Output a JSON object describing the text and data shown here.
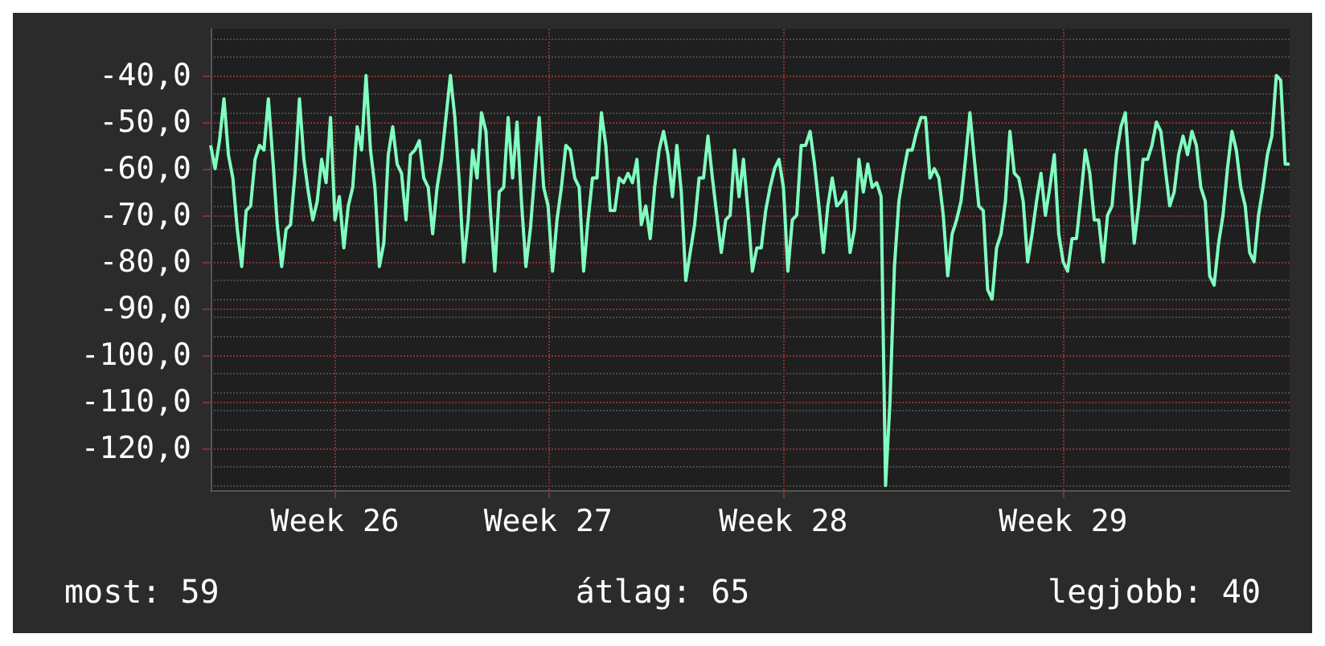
{
  "chart_data": {
    "type": "line",
    "categories": [
      null,
      null,
      null,
      null,
      null,
      null,
      null,
      null,
      null,
      null,
      null,
      null,
      null,
      null,
      null,
      null,
      null,
      null,
      null,
      null,
      null,
      null,
      null,
      null,
      null,
      null,
      null,
      null,
      "Week 26",
      null,
      null,
      null,
      null,
      null,
      null,
      null,
      null,
      null,
      null,
      null,
      null,
      null,
      null,
      null,
      null,
      null,
      null,
      null,
      null,
      null,
      null,
      null,
      null,
      null,
      null,
      null,
      null,
      null,
      null,
      null,
      null,
      null,
      null,
      null,
      null,
      null,
      null,
      null,
      null,
      null,
      null,
      null,
      null,
      null,
      null,
      null,
      "Week 27",
      null,
      null,
      null,
      null,
      null,
      null,
      null,
      null,
      null,
      null,
      null,
      null,
      null,
      null,
      null,
      null,
      null,
      null,
      null,
      null,
      null,
      null,
      null,
      null,
      null,
      null,
      null,
      null,
      null,
      null,
      null,
      null,
      null,
      null,
      null,
      null,
      null,
      null,
      null,
      null,
      null,
      null,
      null,
      null,
      null,
      null,
      null,
      null,
      null,
      null,
      null,
      null,
      "Week 28",
      null,
      null,
      null,
      null,
      null,
      null,
      null,
      null,
      null,
      null,
      null,
      null,
      null,
      null,
      null,
      null,
      null,
      null,
      null,
      null,
      null,
      null,
      null,
      null,
      null,
      null,
      null,
      null,
      null,
      null,
      null,
      null,
      null,
      null,
      null,
      null,
      null,
      null,
      null,
      null,
      null,
      null,
      null,
      null,
      null,
      null,
      null,
      null,
      null,
      null,
      null,
      null,
      null,
      null,
      null,
      null,
      null,
      null,
      null,
      null,
      null,
      null,
      "Week 29",
      null,
      null,
      null,
      null,
      null,
      null,
      null,
      null,
      null,
      null,
      null,
      null,
      null,
      null,
      null,
      null,
      null,
      null,
      null,
      null,
      null,
      null,
      null,
      null,
      null,
      null,
      null,
      null,
      null,
      null,
      null,
      null,
      null,
      null,
      null,
      null,
      null,
      null,
      null,
      null,
      null,
      null,
      null,
      null,
      null,
      null,
      null,
      null,
      null,
      null,
      null
    ],
    "series": [
      {
        "color": "#80ffc0",
        "values": [
          -55,
          -60,
          -54,
          -45,
          -57,
          -62,
          -73,
          -81,
          -69,
          -68,
          -58,
          -55,
          -56,
          -45,
          -58,
          -72,
          -81,
          -73,
          -72,
          -61,
          -45,
          -58,
          -65,
          -71,
          -67,
          -58,
          -63,
          -49,
          -71,
          -66,
          -77,
          -68,
          -64,
          -51,
          -56,
          -40,
          -56,
          -64,
          -81,
          -76,
          -57,
          -51,
          -59,
          -61,
          -71,
          -57,
          -56,
          -54,
          -62,
          -64,
          -74,
          -64,
          -58,
          -49,
          -40,
          -49,
          -63,
          -80,
          -71,
          -56,
          -62,
          -48,
          -52,
          -69,
          -82,
          -65,
          -64,
          -49,
          -62,
          -50,
          -67,
          -81,
          -73,
          -61,
          -49,
          -64,
          -68,
          -82,
          -71,
          -64,
          -55,
          -56,
          -62,
          -64,
          -82,
          -71,
          -62,
          -62,
          -48,
          -55,
          -69,
          -69,
          -62,
          -63,
          -61,
          -63,
          -58,
          -72,
          -68,
          -75,
          -64,
          -56,
          -52,
          -57,
          -66,
          -55,
          -65,
          -84,
          -78,
          -72,
          -62,
          -62,
          -53,
          -62,
          -70,
          -78,
          -71,
          -70,
          -56,
          -66,
          -58,
          -69,
          -82,
          -77,
          -77,
          -69,
          -64,
          -60,
          -58,
          -64,
          -82,
          -71,
          -70,
          -55,
          -55,
          -52,
          -59,
          -68,
          -78,
          -68,
          -62,
          -68,
          -67,
          -65,
          -78,
          -73,
          -58,
          -65,
          -59,
          -64,
          -63,
          -66,
          -128,
          -110,
          -81,
          -67,
          -61,
          -56,
          -56,
          -52,
          -49,
          -49,
          -62,
          -60,
          -62,
          -70,
          -83,
          -74,
          -71,
          -67,
          -58,
          -48,
          -58,
          -68,
          -69,
          -86,
          -88,
          -77,
          -74,
          -67,
          -52,
          -61,
          -62,
          -67,
          -80,
          -74,
          -67,
          -61,
          -70,
          -64,
          -57,
          -74,
          -80,
          -82,
          -75,
          -75,
          -66,
          -56,
          -61,
          -71,
          -71,
          -80,
          -70,
          -68,
          -57,
          -51,
          -48,
          -62,
          -76,
          -68,
          -58,
          -58,
          -55,
          -50,
          -52,
          -60,
          -68,
          -65,
          -57,
          -53,
          -57,
          -52,
          -55,
          -64,
          -67,
          -83,
          -85,
          -76,
          -70,
          -60,
          -52,
          -56,
          -64,
          -68,
          -78,
          -80,
          -70,
          -64,
          -57,
          -53,
          -40,
          -41,
          -59,
          -59
        ]
      }
    ],
    "ylim": [
      -129,
      -30
    ],
    "yticks": [
      {
        "value": -40,
        "label": "-40,0"
      },
      {
        "value": -50,
        "label": "-50,0"
      },
      {
        "value": -60,
        "label": "-60,0"
      },
      {
        "value": -70,
        "label": "-70,0"
      },
      {
        "value": -80,
        "label": "-80,0"
      },
      {
        "value": -90,
        "label": "-90,0"
      },
      {
        "value": -100,
        "label": "-100,0"
      },
      {
        "value": -110,
        "label": "-110,0"
      },
      {
        "value": -120,
        "label": "-120,0"
      }
    ],
    "grid": true,
    "marker": "none",
    "line_style": "solid",
    "annotations": [
      "most: 59",
      "átlag: 65",
      "legjobb: 40"
    ]
  }
}
